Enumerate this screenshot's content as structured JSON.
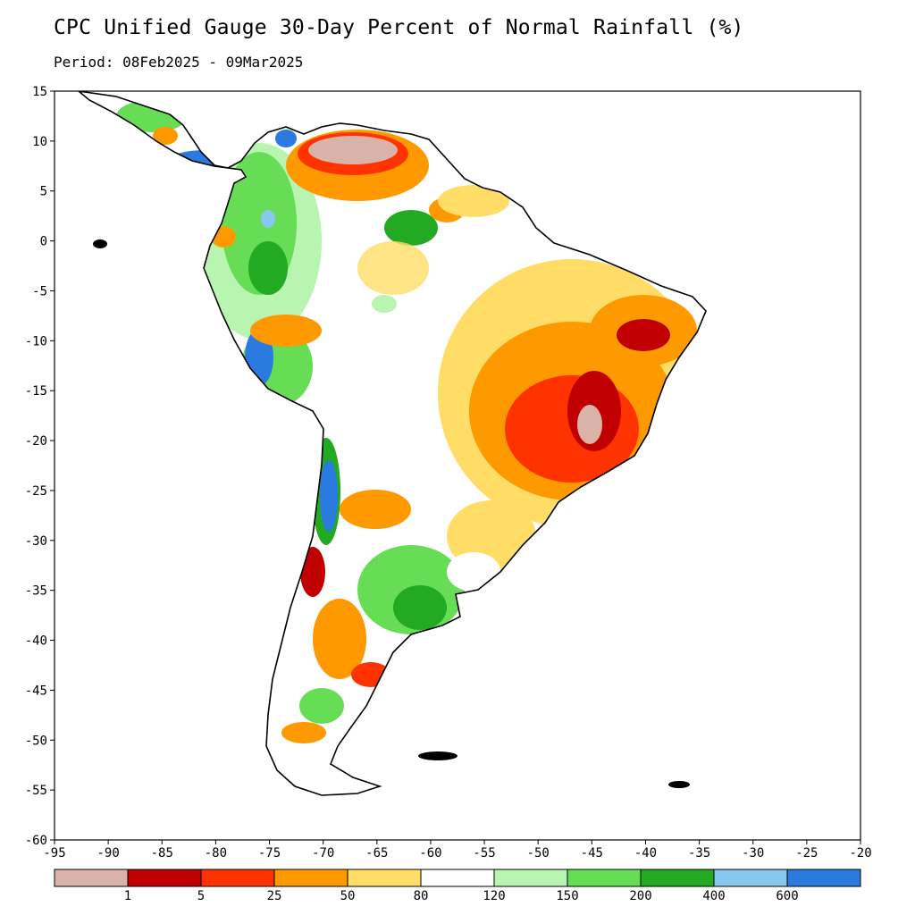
{
  "title": "CPC Unified Gauge 30-Day Percent of Normal Rainfall (%)",
  "period": "Period: 08Feb2025 - 09Mar2025",
  "map": {
    "region": "South America",
    "lon_range": [
      -95,
      -20
    ],
    "lat_range": [
      -60,
      15
    ],
    "x_ticks": [
      "-95",
      "-90",
      "-85",
      "-80",
      "-75",
      "-70",
      "-65",
      "-60",
      "-55",
      "-50",
      "-45",
      "-40",
      "-35",
      "-30",
      "-25",
      "-20"
    ],
    "y_ticks": [
      "15",
      "10",
      "5",
      "0",
      "-5",
      "-10",
      "-15",
      "-20",
      "-25",
      "-30",
      "-35",
      "-40",
      "-45",
      "-50",
      "-55",
      "-60"
    ]
  },
  "legend": {
    "colors": [
      "#d9b3a8",
      "#c00000",
      "#ff3300",
      "#ff9900",
      "#ffdd66",
      "#ffffff",
      "#b7f5b0",
      "#66dd55",
      "#22aa22",
      "#88c8f0",
      "#2a7ae0"
    ],
    "labels": [
      "1",
      "5",
      "25",
      "50",
      "80",
      "120",
      "150",
      "200",
      "400",
      "600"
    ]
  }
}
